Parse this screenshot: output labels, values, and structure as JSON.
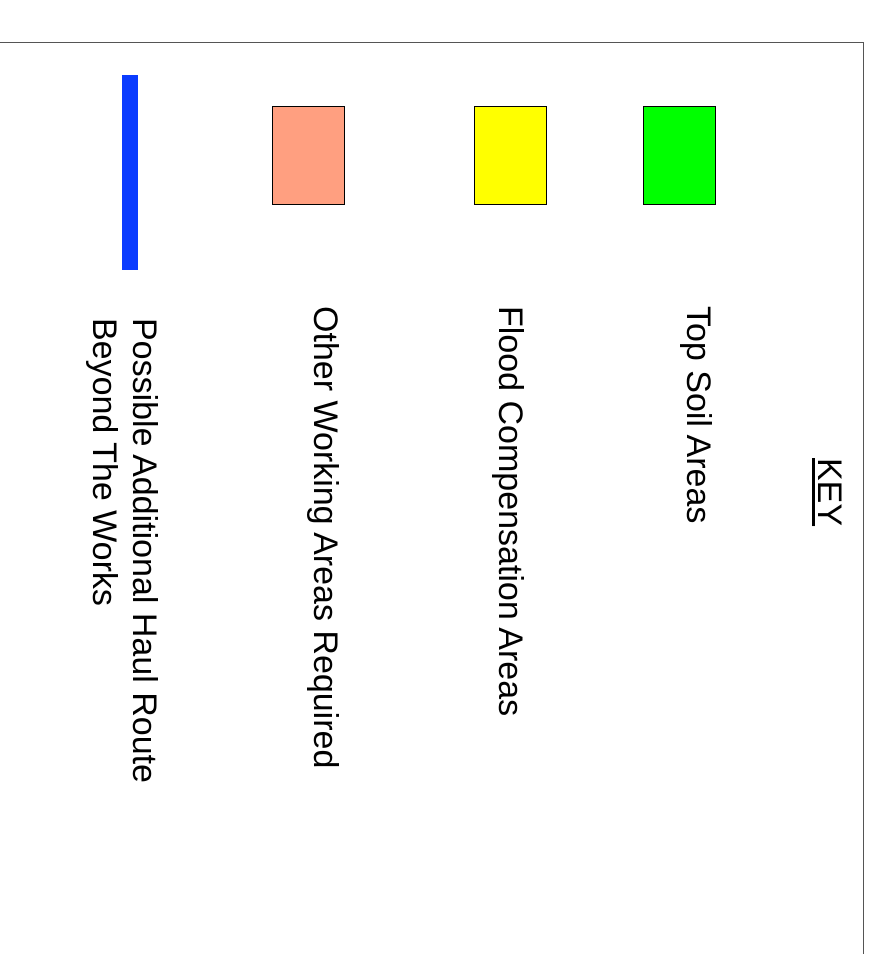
{
  "key": {
    "title": "KEY",
    "items": [
      {
        "label": "Top Soil Areas",
        "color": "#00ff00",
        "symbol": "fill"
      },
      {
        "label": "Flood Compensation Areas",
        "color": "#ffff00",
        "symbol": "fill"
      },
      {
        "label": "Other Working Areas Required",
        "color": "#ff9f80",
        "symbol": "fill"
      },
      {
        "label": "Possible Additional Haul Route\nBeyond The Works",
        "color": "#0a3cff",
        "symbol": "line"
      }
    ]
  }
}
